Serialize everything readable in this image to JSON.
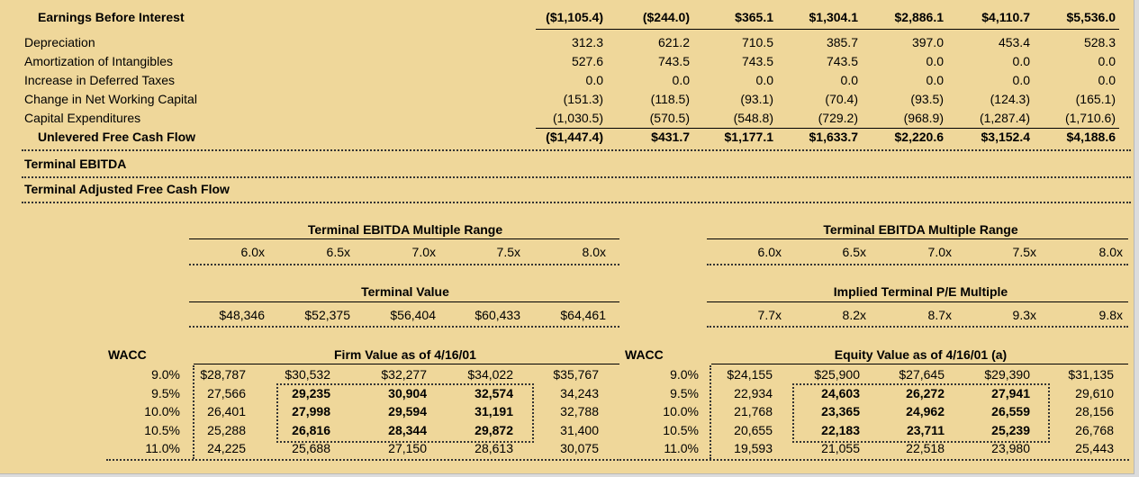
{
  "cash_flow": {
    "ebit_label": "Earnings Before Interest",
    "ebit_values": [
      "($1,105.4)",
      "($244.0)",
      "$365.1",
      "$1,304.1",
      "$2,886.1",
      "$4,110.7",
      "$5,536.0"
    ],
    "rows": [
      {
        "label": "Depreciation",
        "values": [
          "312.3",
          "621.2",
          "710.5",
          "385.7",
          "397.0",
          "453.4",
          "528.3"
        ]
      },
      {
        "label": "Amortization of Intangibles",
        "values": [
          "527.6",
          "743.5",
          "743.5",
          "743.5",
          "0.0",
          "0.0",
          "0.0"
        ]
      },
      {
        "label": "Increase in Deferred Taxes",
        "values": [
          "0.0",
          "0.0",
          "0.0",
          "0.0",
          "0.0",
          "0.0",
          "0.0"
        ]
      },
      {
        "label": "Change in Net Working Capital",
        "values": [
          "(151.3)",
          "(118.5)",
          "(93.1)",
          "(70.4)",
          "(93.5)",
          "(124.3)",
          "(165.1)"
        ]
      },
      {
        "label": "Capital Expenditures",
        "values": [
          "(1,030.5)",
          "(570.5)",
          "(548.8)",
          "(729.2)",
          "(968.9)",
          "(1,287.4)",
          "(1,710.6)"
        ]
      }
    ],
    "ufcf_label": "Unlevered Free Cash Flow",
    "ufcf_values": [
      "($1,447.4)",
      "$431.7",
      "$1,177.1",
      "$1,633.7",
      "$2,220.6",
      "$3,152.4",
      "$4,188.6"
    ],
    "terminal_ebitda_label": "Terminal EBITDA",
    "terminal_afcf_label": "Terminal Adjusted Free Cash Flow"
  },
  "left_panel": {
    "multiple_title": "Terminal EBITDA Multiple Range",
    "multiples": [
      "6.0x",
      "6.5x",
      "7.0x",
      "7.5x",
      "8.0x"
    ],
    "tv_title": "Terminal Value",
    "tv_values": [
      "$48,346",
      "$52,375",
      "$56,404",
      "$60,433",
      "$64,461"
    ],
    "wacc_label": "WACC",
    "grid_title": "Firm Value as of 4/16/01",
    "waccs": [
      "9.0%",
      "9.5%",
      "10.0%",
      "10.5%",
      "11.0%"
    ],
    "grid": [
      [
        "$28,787",
        "$30,532",
        "$32,277",
        "$34,022",
        "$35,767"
      ],
      [
        "27,566",
        "29,235",
        "30,904",
        "32,574",
        "34,243"
      ],
      [
        "26,401",
        "27,998",
        "29,594",
        "31,191",
        "32,788"
      ],
      [
        "25,288",
        "26,816",
        "28,344",
        "29,872",
        "31,400"
      ],
      [
        "24,225",
        "25,688",
        "27,150",
        "28,613",
        "30,075"
      ]
    ]
  },
  "right_panel": {
    "multiple_title": "Terminal EBITDA Multiple Range",
    "multiples": [
      "6.0x",
      "6.5x",
      "7.0x",
      "7.5x",
      "8.0x"
    ],
    "pe_title": "Implied Terminal P/E Multiple",
    "pe_values": [
      "7.7x",
      "8.2x",
      "8.7x",
      "9.3x",
      "9.8x"
    ],
    "wacc_label": "WACC",
    "grid_title": "Equity Value as of 4/16/01 (a)",
    "waccs": [
      "9.0%",
      "9.5%",
      "10.0%",
      "10.5%",
      "11.0%"
    ],
    "grid": [
      [
        "$24,155",
        "$25,900",
        "$27,645",
        "$29,390",
        "$31,135"
      ],
      [
        "22,934",
        "24,603",
        "26,272",
        "27,941",
        "29,610"
      ],
      [
        "21,768",
        "23,365",
        "24,962",
        "26,559",
        "28,156"
      ],
      [
        "20,655",
        "22,183",
        "23,711",
        "25,239",
        "26,768"
      ],
      [
        "19,593",
        "21,055",
        "22,518",
        "23,980",
        "25,443"
      ]
    ]
  }
}
